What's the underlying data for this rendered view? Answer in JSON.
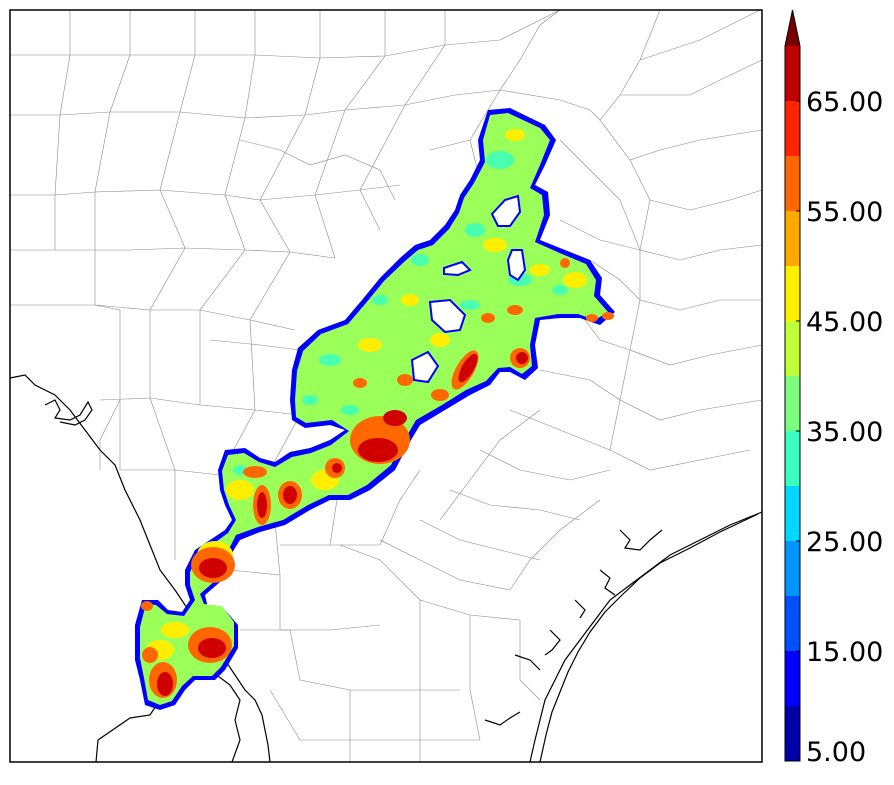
{
  "colorbar": {
    "ticks": [
      {
        "value": 5,
        "label": "5.00"
      },
      {
        "value": 15,
        "label": "15.00"
      },
      {
        "value": 25,
        "label": "25.00"
      },
      {
        "value": 35,
        "label": "35.00"
      },
      {
        "value": 45,
        "label": "45.00"
      },
      {
        "value": 55,
        "label": "55.00"
      },
      {
        "value": 65,
        "label": "65.00"
      }
    ],
    "levels": [
      {
        "from": 5,
        "to": 10,
        "color": "#0000a8"
      },
      {
        "from": 10,
        "to": 15,
        "color": "#0000ff"
      },
      {
        "from": 15,
        "to": 20,
        "color": "#0050ff"
      },
      {
        "from": 20,
        "to": 25,
        "color": "#0094ff"
      },
      {
        "from": 25,
        "to": 30,
        "color": "#00d8ff"
      },
      {
        "from": 30,
        "to": 35,
        "color": "#3affc0"
      },
      {
        "from": 35,
        "to": 40,
        "color": "#7cff7c"
      },
      {
        "from": 40,
        "to": 45,
        "color": "#c0ff38"
      },
      {
        "from": 45,
        "to": 50,
        "color": "#ffee00"
      },
      {
        "from": 50,
        "to": 55,
        "color": "#ffa800"
      },
      {
        "from": 55,
        "to": 60,
        "color": "#ff6800"
      },
      {
        "from": 60,
        "to": 65,
        "color": "#ff2400"
      },
      {
        "from": 65,
        "to": 70,
        "color": "#c00000"
      }
    ],
    "extend_color": "#7a0000",
    "extend": "max"
  }
}
